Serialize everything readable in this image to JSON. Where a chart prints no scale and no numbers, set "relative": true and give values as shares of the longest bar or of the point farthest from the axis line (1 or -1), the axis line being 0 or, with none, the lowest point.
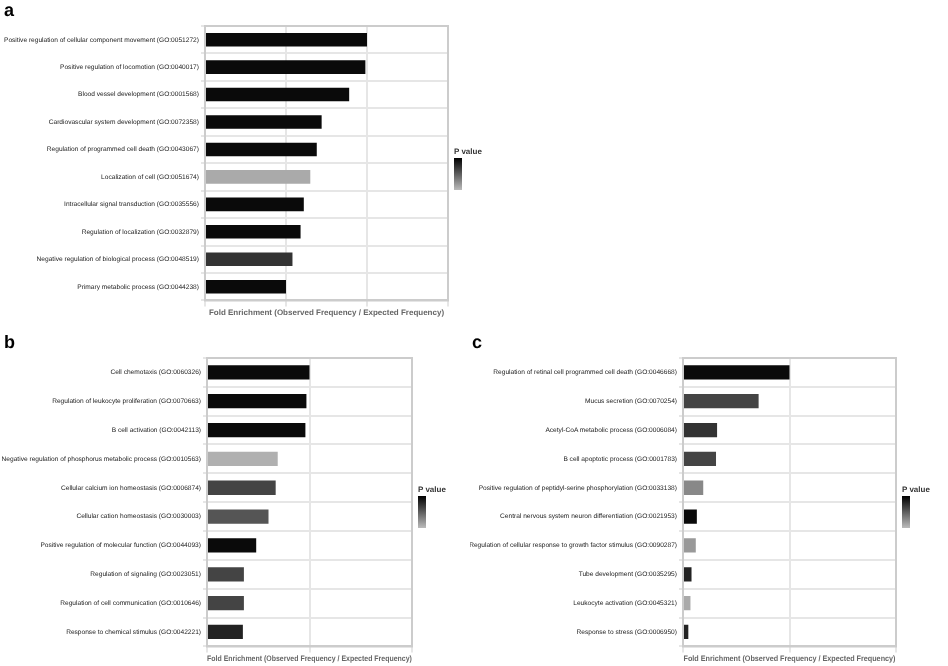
{
  "chart_data": [
    {
      "type": "bar",
      "orientation": "horizontal",
      "relative": true,
      "title": "a",
      "xlabel": "Fold Enrichment (Observed Frequency / Expected Frequency)",
      "legend_title": "P value",
      "grid": true,
      "categories": [
        "Positive regulation of cellular component movement (GO:0051272)",
        "Positive regulation of locomotion (GO:0040017)",
        "Blood vessel development (GO:0001568)",
        "Cardiovascular system development (GO:0072358)",
        "Regulation of programmed cell death (GO:0043067)",
        "Localization of cell (GO:0051674)",
        "Intracellular signal transduction (GO:0035556)",
        "Regulation of localization (GO:0032879)",
        "Negative regulation of biological process (GO:0048519)",
        "Primary metabolic process (GO:0044238)"
      ],
      "values": [
        1,
        0.99,
        0.89,
        0.72,
        0.69,
        0.65,
        0.61,
        0.59,
        0.54,
        0.5
      ],
      "colors": [
        "#0a0a0a",
        "#0a0a0a",
        "#0a0a0a",
        "#0a0a0a",
        "#0a0a0a",
        "#aaaaaa",
        "#0a0a0a",
        "#0a0a0a",
        "#333333",
        "#0a0a0a"
      ]
    },
    {
      "type": "bar",
      "orientation": "horizontal",
      "relative": true,
      "title": "b",
      "xlabel": "Fold Enrichment (Observed Frequency / Expected Frequency)",
      "legend_title": "P value",
      "grid": true,
      "categories": [
        "Cell chemotaxis (GO:0060326)",
        "Regulation of leukocyte proliferation (GO:0070663)",
        "B cell activation (GO:0042113)",
        "Negative regulation of phosphorus metabolic process (GO:0010563)",
        "Cellular calcium ion homeostasis (GO:0006874)",
        "Cellular cation homeostasis (GO:0030003)",
        "Positive regulation of molecular function (GO:0044093)",
        "Regulation of signaling (GO:0023051)",
        "Regulation of cell communication (GO:0010646)",
        "Response to chemical stimulus (GO:0042221)"
      ],
      "values": [
        1,
        0.97,
        0.96,
        0.69,
        0.67,
        0.6,
        0.48,
        0.36,
        0.36,
        0.35
      ],
      "colors": [
        "#0a0a0a",
        "#0a0a0a",
        "#0a0a0a",
        "#b0b0b0",
        "#444444",
        "#555555",
        "#0a0a0a",
        "#444444",
        "#444444",
        "#222222"
      ]
    },
    {
      "type": "bar",
      "orientation": "horizontal",
      "relative": true,
      "title": "c",
      "xlabel": "Fold Enrichment (Observed Frequency / Expected Frequency)",
      "legend_title": "P value",
      "grid": true,
      "categories": [
        "Regulation of retinal cell programmed cell death (GO:0046668)",
        "Mucus secretion (GO:0070254)",
        "Acetyl-CoA metabolic process (GO:0006084)",
        "B cell apoptotic process (GO:0001783)",
        "Positive regulation of peptidyl-serine phosphorylation (GO:0033138)",
        "Central nervous system neuron differentiation (GO:0021953)",
        "Regulation of cellular response to growth factor stimulus (GO:0090287)",
        "Tube development (GO:0035295)",
        "Leukocyte activation (GO:0045321)",
        "Response to stress (GO:0006950)"
      ],
      "values": [
        1,
        0.71,
        0.32,
        0.31,
        0.19,
        0.13,
        0.12,
        0.08,
        0.07,
        0.05
      ],
      "colors": [
        "#0a0a0a",
        "#444444",
        "#333333",
        "#444444",
        "#888888",
        "#0a0a0a",
        "#999999",
        "#222222",
        "#aaaaaa",
        "#222222"
      ]
    }
  ]
}
